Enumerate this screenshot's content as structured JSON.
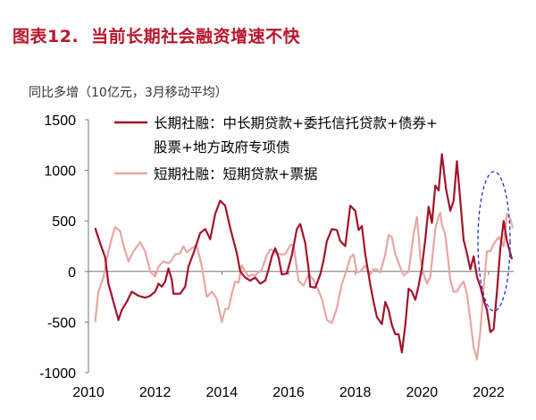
{
  "header": {
    "figure_number": "图表12.",
    "title": "当前长期社会融资增速不快"
  },
  "chart_data": {
    "type": "line",
    "ylabel": "同比多增（10亿元，3月移动平均）",
    "ylim": [
      -1000,
      1500
    ],
    "yticks": [
      "1500",
      "1000",
      "500",
      "0",
      "-500",
      "-1000"
    ],
    "xlim": [
      2010,
      2022.75
    ],
    "xticks": [
      "2010",
      "2012",
      "2014",
      "2016",
      "2018",
      "2020",
      "2022"
    ],
    "grid": false,
    "legend_position": "top",
    "series": [
      {
        "name_line1": "长期社融：中长期贷款+委托信托贷款+债券+",
        "name_line2": "股票+地方政府专项债",
        "color": "#a3132a",
        "points": [
          [
            2010.2,
            430
          ],
          [
            2010.35,
            280
          ],
          [
            2010.5,
            140
          ],
          [
            2010.6,
            -120
          ],
          [
            2010.75,
            -300
          ],
          [
            2010.9,
            -480
          ],
          [
            2011.0,
            -380
          ],
          [
            2011.15,
            -300
          ],
          [
            2011.3,
            -200
          ],
          [
            2011.5,
            -240
          ],
          [
            2011.7,
            -260
          ],
          [
            2011.85,
            -240
          ],
          [
            2012.0,
            -200
          ],
          [
            2012.1,
            -120
          ],
          [
            2012.2,
            -150
          ],
          [
            2012.3,
            -100
          ],
          [
            2012.4,
            30
          ],
          [
            2012.5,
            -80
          ],
          [
            2012.55,
            -220
          ],
          [
            2012.75,
            -220
          ],
          [
            2012.9,
            -150
          ],
          [
            2013.0,
            50
          ],
          [
            2013.15,
            180
          ],
          [
            2013.35,
            380
          ],
          [
            2013.5,
            420
          ],
          [
            2013.65,
            320
          ],
          [
            2013.8,
            570
          ],
          [
            2013.95,
            700
          ],
          [
            2014.1,
            650
          ],
          [
            2014.25,
            430
          ],
          [
            2014.45,
            180
          ],
          [
            2014.55,
            0
          ],
          [
            2014.7,
            -60
          ],
          [
            2014.85,
            -90
          ],
          [
            2015.0,
            -60
          ],
          [
            2015.15,
            -120
          ],
          [
            2015.3,
            -90
          ],
          [
            2015.4,
            20
          ],
          [
            2015.5,
            150
          ],
          [
            2015.6,
            230
          ],
          [
            2015.7,
            140
          ],
          [
            2015.8,
            -30
          ],
          [
            2015.95,
            -20
          ],
          [
            2016.1,
            160
          ],
          [
            2016.25,
            420
          ],
          [
            2016.35,
            470
          ],
          [
            2016.5,
            280
          ],
          [
            2016.6,
            30
          ],
          [
            2016.65,
            -150
          ],
          [
            2016.8,
            -160
          ],
          [
            2016.95,
            -30
          ],
          [
            2017.05,
            110
          ],
          [
            2017.15,
            300
          ],
          [
            2017.3,
            420
          ],
          [
            2017.45,
            410
          ],
          [
            2017.55,
            300
          ],
          [
            2017.7,
            250
          ],
          [
            2017.85,
            650
          ],
          [
            2018.0,
            600
          ],
          [
            2018.1,
            410
          ],
          [
            2018.2,
            450
          ],
          [
            2018.3,
            170
          ],
          [
            2018.45,
            -130
          ],
          [
            2018.55,
            -300
          ],
          [
            2018.65,
            -450
          ],
          [
            2018.8,
            -520
          ],
          [
            2018.9,
            -300
          ],
          [
            2019.0,
            -380
          ],
          [
            2019.1,
            -530
          ],
          [
            2019.2,
            -620
          ],
          [
            2019.3,
            -620
          ],
          [
            2019.4,
            -800
          ],
          [
            2019.5,
            -530
          ],
          [
            2019.6,
            -170
          ],
          [
            2019.7,
            -200
          ],
          [
            2019.8,
            -280
          ],
          [
            2019.9,
            -140
          ],
          [
            2020.0,
            40
          ],
          [
            2020.1,
            320
          ],
          [
            2020.2,
            640
          ],
          [
            2020.3,
            480
          ],
          [
            2020.4,
            850
          ],
          [
            2020.5,
            800
          ],
          [
            2020.6,
            1160
          ],
          [
            2020.72,
            820
          ],
          [
            2020.85,
            600
          ],
          [
            2020.95,
            700
          ],
          [
            2021.05,
            1090
          ],
          [
            2021.15,
            700
          ],
          [
            2021.25,
            310
          ],
          [
            2021.35,
            180
          ],
          [
            2021.45,
            20
          ],
          [
            2021.55,
            150
          ],
          [
            2021.65,
            -50
          ],
          [
            2021.75,
            -150
          ],
          [
            2021.85,
            -280
          ],
          [
            2021.95,
            -380
          ],
          [
            2022.05,
            -600
          ],
          [
            2022.15,
            -570
          ],
          [
            2022.25,
            -200
          ],
          [
            2022.35,
            230
          ],
          [
            2022.45,
            500
          ],
          [
            2022.55,
            300
          ],
          [
            2022.7,
            120
          ]
        ]
      },
      {
        "name": "短期社融：短期贷款+票据",
        "color": "#e8a7a3",
        "points": [
          [
            2010.2,
            -500
          ],
          [
            2010.3,
            -200
          ],
          [
            2010.45,
            -60
          ],
          [
            2010.55,
            120
          ],
          [
            2010.7,
            330
          ],
          [
            2010.8,
            440
          ],
          [
            2010.95,
            400
          ],
          [
            2011.05,
            260
          ],
          [
            2011.2,
            100
          ],
          [
            2011.35,
            200
          ],
          [
            2011.55,
            290
          ],
          [
            2011.7,
            200
          ],
          [
            2011.85,
            0
          ],
          [
            2012.0,
            -50
          ],
          [
            2012.1,
            50
          ],
          [
            2012.25,
            100
          ],
          [
            2012.4,
            80
          ],
          [
            2012.5,
            110
          ],
          [
            2012.6,
            170
          ],
          [
            2012.75,
            180
          ],
          [
            2012.85,
            250
          ],
          [
            2012.95,
            190
          ],
          [
            2013.1,
            230
          ],
          [
            2013.25,
            260
          ],
          [
            2013.4,
            50
          ],
          [
            2013.55,
            -250
          ],
          [
            2013.7,
            -200
          ],
          [
            2013.85,
            -270
          ],
          [
            2014.0,
            -500
          ],
          [
            2014.1,
            -370
          ],
          [
            2014.2,
            -370
          ],
          [
            2014.3,
            -220
          ],
          [
            2014.4,
            -100
          ],
          [
            2014.5,
            -110
          ],
          [
            2014.6,
            60
          ],
          [
            2014.7,
            0
          ],
          [
            2014.8,
            -50
          ],
          [
            2014.9,
            -30
          ],
          [
            2015.0,
            -40
          ],
          [
            2015.2,
            20
          ],
          [
            2015.35,
            160
          ],
          [
            2015.45,
            220
          ],
          [
            2015.6,
            190
          ],
          [
            2015.75,
            170
          ],
          [
            2015.9,
            170
          ],
          [
            2016.05,
            260
          ],
          [
            2016.15,
            260
          ],
          [
            2016.3,
            -90
          ],
          [
            2016.45,
            -140
          ],
          [
            2016.6,
            -30
          ],
          [
            2016.75,
            -80
          ],
          [
            2016.9,
            -190
          ],
          [
            2017.0,
            -270
          ],
          [
            2017.15,
            -480
          ],
          [
            2017.3,
            -510
          ],
          [
            2017.45,
            -360
          ],
          [
            2017.6,
            -120
          ],
          [
            2017.75,
            20
          ],
          [
            2017.85,
            140
          ],
          [
            2017.95,
            170
          ],
          [
            2018.05,
            -10
          ],
          [
            2018.15,
            0
          ],
          [
            2018.3,
            60
          ],
          [
            2018.45,
            -30
          ],
          [
            2018.55,
            20
          ],
          [
            2018.65,
            20
          ],
          [
            2018.75,
            -10
          ],
          [
            2018.9,
            170
          ],
          [
            2019.0,
            360
          ],
          [
            2019.1,
            340
          ],
          [
            2019.2,
            170
          ],
          [
            2019.35,
            40
          ],
          [
            2019.45,
            -40
          ],
          [
            2019.6,
            0
          ],
          [
            2019.75,
            370
          ],
          [
            2019.85,
            540
          ],
          [
            2019.9,
            360
          ],
          [
            2019.95,
            130
          ],
          [
            2020.05,
            -20
          ],
          [
            2020.15,
            -120
          ],
          [
            2020.25,
            -50
          ],
          [
            2020.4,
            420
          ],
          [
            2020.5,
            550
          ],
          [
            2020.55,
            580
          ],
          [
            2020.6,
            460
          ],
          [
            2020.7,
            360
          ],
          [
            2020.85,
            -80
          ],
          [
            2020.95,
            -200
          ],
          [
            2021.05,
            -200
          ],
          [
            2021.15,
            -140
          ],
          [
            2021.25,
            -100
          ],
          [
            2021.35,
            -220
          ],
          [
            2021.45,
            -480
          ],
          [
            2021.55,
            -750
          ],
          [
            2021.65,
            -870
          ],
          [
            2021.75,
            -590
          ],
          [
            2021.85,
            -160
          ],
          [
            2021.95,
            200
          ],
          [
            2022.05,
            200
          ],
          [
            2022.15,
            270
          ],
          [
            2022.3,
            340
          ],
          [
            2022.45,
            250
          ],
          [
            2022.55,
            570
          ],
          [
            2022.65,
            520
          ],
          [
            2022.72,
            430
          ]
        ]
      }
    ],
    "annotation": "dashed-ellipse-highlight"
  }
}
